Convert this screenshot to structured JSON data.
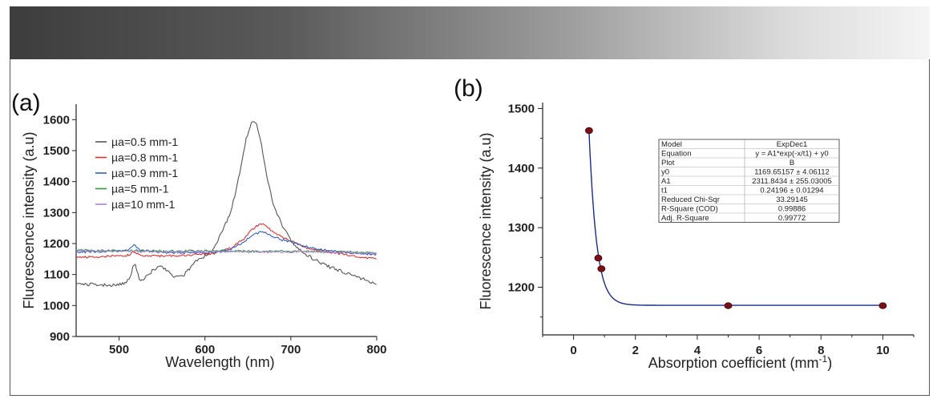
{
  "chart_data": [
    {
      "type": "line",
      "panel_label": "(a)",
      "xlabel": "Wavelength (nm)",
      "ylabel": "Fluorescence intensity (a.u)",
      "xlim": [
        450,
        800
      ],
      "ylim": [
        900,
        1650
      ],
      "xticks": [
        500,
        600,
        700,
        800
      ],
      "yticks": [
        900,
        1000,
        1100,
        1200,
        1300,
        1400,
        1500,
        1600
      ],
      "series": [
        {
          "name": "µa=0.5 mm-1",
          "color": "#555555",
          "x": [
            450,
            470,
            490,
            505,
            512,
            518,
            524,
            530,
            540,
            548,
            556,
            566,
            576,
            590,
            600,
            610,
            620,
            630,
            640,
            648,
            655,
            660,
            665,
            672,
            680,
            690,
            700,
            710,
            720,
            730,
            740,
            750,
            760,
            770,
            780,
            790,
            800
          ],
          "y": [
            1070,
            1068,
            1065,
            1070,
            1085,
            1140,
            1080,
            1090,
            1115,
            1130,
            1110,
            1090,
            1100,
            1145,
            1160,
            1180,
            1240,
            1300,
            1420,
            1540,
            1595,
            1590,
            1530,
            1420,
            1320,
            1260,
            1210,
            1180,
            1160,
            1145,
            1130,
            1120,
            1110,
            1100,
            1090,
            1080,
            1068
          ]
        },
        {
          "name": "µa=0.8 mm-1",
          "color": "#e03030",
          "x": [
            450,
            480,
            510,
            518,
            525,
            550,
            580,
            610,
            630,
            645,
            655,
            665,
            672,
            680,
            690,
            700,
            720,
            740,
            760,
            780,
            800
          ],
          "y": [
            1155,
            1158,
            1162,
            1175,
            1162,
            1160,
            1162,
            1168,
            1185,
            1215,
            1245,
            1265,
            1255,
            1235,
            1220,
            1210,
            1185,
            1175,
            1165,
            1158,
            1150
          ]
        },
        {
          "name": "µa=0.9 mm-1",
          "color": "#2f60c0",
          "x": [
            450,
            480,
            510,
            518,
            525,
            550,
            580,
            610,
            630,
            645,
            655,
            665,
            672,
            680,
            690,
            700,
            720,
            740,
            760,
            780,
            800
          ],
          "y": [
            1172,
            1175,
            1178,
            1195,
            1178,
            1172,
            1170,
            1172,
            1182,
            1205,
            1225,
            1240,
            1232,
            1222,
            1212,
            1205,
            1188,
            1178,
            1172,
            1168,
            1165
          ]
        },
        {
          "name": "µa=5 mm-1",
          "color": "#2e9a3a",
          "x": [
            450,
            500,
            550,
            600,
            650,
            700,
            750,
            800
          ],
          "y": [
            1178,
            1177,
            1176,
            1176,
            1175,
            1175,
            1174,
            1170
          ]
        },
        {
          "name": "µa=10 mm-1",
          "color": "#b07fd8",
          "x": [
            450,
            500,
            550,
            600,
            650,
            700,
            750,
            800
          ],
          "y": [
            1176,
            1175,
            1174,
            1174,
            1173,
            1173,
            1172,
            1168
          ]
        }
      ]
    },
    {
      "type": "scatter",
      "panel_label": "(b)",
      "xlabel": "Absorption coefficient (mm",
      "xlabel_sup": "-1",
      "xlabel_end": ")",
      "ylabel": "Fluorescence intensity (a.u)",
      "xlim": [
        -1,
        11
      ],
      "ylim": [
        1120,
        1510
      ],
      "xticks": [
        0,
        2,
        4,
        6,
        8,
        10
      ],
      "yticks": [
        1200,
        1300,
        1400,
        1500
      ],
      "points": {
        "x": [
          0.5,
          0.8,
          0.9,
          5,
          10
        ],
        "y": [
          1463,
          1249,
          1231,
          1169,
          1169
        ]
      },
      "point_color": "#7a0f14",
      "fit": {
        "model": "ExpDec1",
        "y0": 1169.65157,
        "A1": 2311.8434,
        "t1": 0.24196,
        "x_from": 0.5,
        "x_to": 10,
        "color": "#1a2a8a"
      },
      "table": [
        [
          "Model",
          "ExpDec1"
        ],
        [
          "Equation",
          "y = A1*exp(-x/t1) + y0"
        ],
        [
          "Plot",
          "B"
        ],
        [
          "y0",
          "1169.65157 ± 4.06112"
        ],
        [
          "A1",
          "2311.8434 ± 255.03005"
        ],
        [
          "t1",
          "0.24196 ± 0.01294"
        ],
        [
          "Reduced Chi-Sqr",
          "33.29145"
        ],
        [
          "R-Square (COD)",
          "0.99886"
        ],
        [
          "Adj. R-Square",
          "0.99772"
        ]
      ]
    }
  ]
}
